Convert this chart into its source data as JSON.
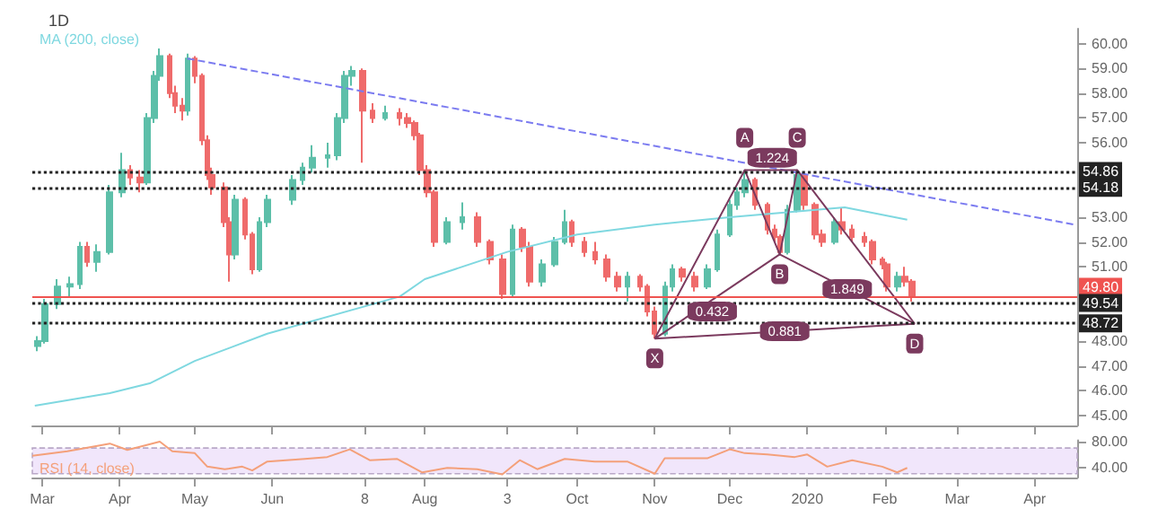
{
  "chart_data": [
    {
      "type": "candlestick",
      "title": "1D",
      "legend": "top left",
      "grid": false,
      "marker": "none",
      "tick_labels": "y",
      "colors": [
        "#5dbfa9",
        "#5dbfa9",
        "#5dbfa9",
        "#5dbfa9",
        "#5dbfa9",
        "#ef6b6b",
        "#5dbfa9",
        "#5dbfa9",
        "#5dbfa9",
        "#ef6b6b",
        "#ef6b6b",
        "#5dbfa9",
        "#5dbfa9",
        "#5dbfa9",
        "#ef6b6b",
        "#ef6b6b",
        "#ef6b6b",
        "#5dbfa9",
        "#ef6b6b",
        "#ef6b6b",
        "#ef6b6b",
        "#ef6b6b",
        "#ef6b6b",
        "#ef6b6b",
        "#5dbfa9",
        "#ef6b6b",
        "#ef6b6b",
        "#5dbfa9",
        "#5dbfa9",
        "#5dbfa9",
        "#5dbfa9",
        "#5dbfa9",
        "#5dbfa9",
        "#5dbfa9",
        "#5dbfa9",
        "#5dbfa9",
        "#ef6b6b",
        "#ef6b6b",
        "#5dbfa9",
        "#ef6b6b",
        "#ef6b6b",
        "#ef6b6b",
        "#ef6b6b",
        "#ef6b6b",
        "#ef6b6b",
        "#5dbfa9",
        "#5dbfa9",
        "#ef6b6b",
        "#ef6b6b",
        "#ef6b6b",
        "#5dbfa9",
        "#ef6b6b",
        "#ef6b6b",
        "#5dbfa9",
        "#5dbfa9",
        "#5dbfa9",
        "#ef6b6b",
        "#ef6b6b",
        "#ef6b6b",
        "#ef6b6b",
        "#ef6b6b",
        "#5dbfa9",
        "#ef6b6b",
        "#ef6b6b",
        "#ef6b6b",
        "#5dbfa9",
        "#5dbfa9",
        "#ef6b6b",
        "#ef6b6b",
        "#5dbfa9",
        "#5dbfa9",
        "#5dbfa9",
        "#5dbfa9",
        "#5dbfa9",
        "#ef6b6b",
        "#ef6b6b",
        "#ef6b6b",
        "#ef6b6b",
        "#5dbfa9",
        "#5dbfa9",
        "#ef6b6b",
        "#ef6b6b",
        "#ef6b6b",
        "#5dbfa9",
        "#ef6b6b",
        "#ef6b6b",
        "#ef6b6b",
        "#ef6b6b",
        "#ef6b6b",
        "#ef6b6b",
        "#5dbfa9",
        "#ef6b6b",
        "#ef6b6b"
      ],
      "x": [
        "2019-02-27",
        "2019-03-02",
        "2019-03-07",
        "2019-03-12",
        "2019-03-16",
        "2019-03-19",
        "2019-03-23",
        "2019-03-28",
        "2019-04-02",
        "2019-04-05",
        "2019-04-09",
        "2019-04-12",
        "2019-04-15",
        "2019-04-17",
        "2019-04-21",
        "2019-04-23",
        "2019-04-26",
        "2019-04-28",
        "2019-05-01",
        "2019-05-04",
        "2019-05-06",
        "2019-05-08",
        "2019-05-13",
        "2019-05-15",
        "2019-05-17",
        "2019-05-21",
        "2019-05-24",
        "2019-05-27",
        "2019-05-30",
        "2019-06-09",
        "2019-06-13",
        "2019-06-17",
        "2019-06-23",
        "2019-06-27",
        "2019-06-30",
        "2019-07-03",
        "2019-07-07",
        "2019-07-11",
        "2019-07-16",
        "2019-07-22",
        "2019-07-25",
        "2019-07-28",
        "2019-07-30",
        "2019-08-02",
        "2019-08-05",
        "2019-08-10",
        "2019-08-16",
        "2019-08-22",
        "2019-08-27",
        "2019-09-01",
        "2019-09-05",
        "2019-09-09",
        "2019-09-12",
        "2019-09-17",
        "2019-09-22",
        "2019-09-26",
        "2019-09-29",
        "2019-10-04",
        "2019-10-08",
        "2019-10-13",
        "2019-10-17",
        "2019-10-21",
        "2019-10-26",
        "2019-10-29",
        "2019-11-01",
        "2019-11-05",
        "2019-11-08",
        "2019-11-12",
        "2019-11-17",
        "2019-11-22",
        "2019-11-26",
        "2019-12-01",
        "2019-12-04",
        "2019-12-07",
        "2019-12-11",
        "2019-12-16",
        "2019-12-19",
        "2019-12-21",
        "2019-12-24",
        "2019-12-28",
        "2019-12-31",
        "2020-01-04",
        "2020-01-07",
        "2020-01-12",
        "2020-01-15",
        "2020-01-19",
        "2020-01-24",
        "2020-01-27",
        "2020-01-31",
        "2020-02-02",
        "2020-02-06",
        "2020-02-09",
        "2020-02-12"
      ],
      "ohlc": [
        [
          47.8,
          48.2,
          47.6,
          48.0
        ],
        [
          48.0,
          49.7,
          47.9,
          49.5
        ],
        [
          49.5,
          50.5,
          49.3,
          50.2
        ],
        [
          50.2,
          50.6,
          49.8,
          50.3
        ],
        [
          50.3,
          52.0,
          50.1,
          51.8
        ],
        [
          51.8,
          52.0,
          51.0,
          51.2
        ],
        [
          51.2,
          51.9,
          50.8,
          51.6
        ],
        [
          51.6,
          54.3,
          51.5,
          54.0
        ],
        [
          54.0,
          55.6,
          53.8,
          54.9
        ],
        [
          54.9,
          55.1,
          54.3,
          54.6
        ],
        [
          54.6,
          54.9,
          54.0,
          54.4
        ],
        [
          54.4,
          57.2,
          54.3,
          57.0
        ],
        [
          57.0,
          58.9,
          56.8,
          58.7
        ],
        [
          58.7,
          59.8,
          58.5,
          59.5
        ],
        [
          59.5,
          59.6,
          57.8,
          58.0
        ],
        [
          58.0,
          58.3,
          57.2,
          57.5
        ],
        [
          57.5,
          57.8,
          56.9,
          57.3
        ],
        [
          57.3,
          59.6,
          57.1,
          59.4
        ],
        [
          59.4,
          59.5,
          58.4,
          58.7
        ],
        [
          58.7,
          58.8,
          55.9,
          56.1
        ],
        [
          56.1,
          56.3,
          54.5,
          54.7
        ],
        [
          54.7,
          55.0,
          53.9,
          54.2
        ],
        [
          54.2,
          54.4,
          52.6,
          52.8
        ],
        [
          52.8,
          53.0,
          50.4,
          51.5
        ],
        [
          51.5,
          53.9,
          51.3,
          53.7
        ],
        [
          53.7,
          53.8,
          52.1,
          52.3
        ],
        [
          52.3,
          52.4,
          50.7,
          50.9
        ],
        [
          50.9,
          53.0,
          50.8,
          52.8
        ],
        [
          52.8,
          53.9,
          52.6,
          53.7
        ],
        [
          53.7,
          54.7,
          53.5,
          54.5
        ],
        [
          54.5,
          55.2,
          54.3,
          55.0
        ],
        [
          55.0,
          55.9,
          54.8,
          55.4
        ],
        [
          55.4,
          56.0,
          55.0,
          55.5
        ],
        [
          55.5,
          57.2,
          55.3,
          57.0
        ],
        [
          57.0,
          58.9,
          56.8,
          58.7
        ],
        [
          58.7,
          59.1,
          58.3,
          58.9
        ],
        [
          58.9,
          59.0,
          55.2,
          57.3
        ],
        [
          57.3,
          57.6,
          56.8,
          57.0
        ],
        [
          57.0,
          57.5,
          56.9,
          57.2
        ],
        [
          57.2,
          57.4,
          56.7,
          57.0
        ],
        [
          57.0,
          57.2,
          56.6,
          56.8
        ],
        [
          56.8,
          56.9,
          56.1,
          56.3
        ],
        [
          56.3,
          56.4,
          54.7,
          54.9
        ],
        [
          54.9,
          55.1,
          53.8,
          54.0
        ],
        [
          54.0,
          54.1,
          51.8,
          52.0
        ],
        [
          52.0,
          53.0,
          51.9,
          52.8
        ],
        [
          52.8,
          53.6,
          52.5,
          53.0
        ],
        [
          53.0,
          53.2,
          51.8,
          52.0
        ],
        [
          52.0,
          52.1,
          51.1,
          51.3
        ],
        [
          51.3,
          51.5,
          49.7,
          49.9
        ],
        [
          49.9,
          52.7,
          49.8,
          52.5
        ],
        [
          52.5,
          52.6,
          51.6,
          51.8
        ],
        [
          51.8,
          52.0,
          50.2,
          50.4
        ],
        [
          50.4,
          51.3,
          50.2,
          51.1
        ],
        [
          51.1,
          52.2,
          51.0,
          52.0
        ],
        [
          52.0,
          53.3,
          51.9,
          52.8
        ],
        [
          52.8,
          52.9,
          51.8,
          52.0
        ],
        [
          52.0,
          52.2,
          51.4,
          51.6
        ],
        [
          51.6,
          52.0,
          51.1,
          51.3
        ],
        [
          51.3,
          51.5,
          50.4,
          50.6
        ],
        [
          50.6,
          50.8,
          50.0,
          50.2
        ],
        [
          50.2,
          50.8,
          49.6,
          50.6
        ],
        [
          50.6,
          50.7,
          50.0,
          50.2
        ],
        [
          50.2,
          50.3,
          49.0,
          49.2
        ],
        [
          49.2,
          49.4,
          48.1,
          48.3
        ],
        [
          48.3,
          50.4,
          48.2,
          50.2
        ],
        [
          50.2,
          51.1,
          50.0,
          50.9
        ],
        [
          50.9,
          51.0,
          50.4,
          50.6
        ],
        [
          50.6,
          50.8,
          50.0,
          50.2
        ],
        [
          50.2,
          51.1,
          50.1,
          50.9
        ],
        [
          50.9,
          52.5,
          50.8,
          52.3
        ],
        [
          52.3,
          53.7,
          52.2,
          53.5
        ],
        [
          53.5,
          54.2,
          53.3,
          54.0
        ],
        [
          54.0,
          54.9,
          53.8,
          54.5
        ],
        [
          54.5,
          54.6,
          53.3,
          53.5
        ],
        [
          53.5,
          53.6,
          52.3,
          52.5
        ],
        [
          52.5,
          52.7,
          52.0,
          52.2
        ],
        [
          52.2,
          52.3,
          51.5,
          51.6
        ],
        [
          51.6,
          53.5,
          51.5,
          53.3
        ],
        [
          53.3,
          54.9,
          53.2,
          54.7
        ],
        [
          54.7,
          54.8,
          53.3,
          53.5
        ],
        [
          53.5,
          53.6,
          52.1,
          52.3
        ],
        [
          52.3,
          52.5,
          51.8,
          52.0
        ],
        [
          52.0,
          53.0,
          51.9,
          52.8
        ],
        [
          52.8,
          53.4,
          52.3,
          52.5
        ],
        [
          52.5,
          52.7,
          52.0,
          52.2
        ],
        [
          52.2,
          52.4,
          51.8,
          52.0
        ],
        [
          52.0,
          52.1,
          51.1,
          51.3
        ],
        [
          51.3,
          51.4,
          50.9,
          51.1
        ],
        [
          51.1,
          51.2,
          50.0,
          50.2
        ],
        [
          50.2,
          50.8,
          50.0,
          50.6
        ],
        [
          50.6,
          51.0,
          50.2,
          50.4
        ],
        [
          50.4,
          50.5,
          49.6,
          49.8
        ]
      ],
      "series": [
        {
          "name": "MA (200, close)",
          "type": "line",
          "color": "#7fd8e0",
          "x": [
            "2019-02-26",
            "2019-03-28",
            "2019-04-13",
            "2019-05-01",
            "2019-05-30",
            "2019-07-22",
            "2019-08-01",
            "2019-09-03",
            "2019-10-01",
            "2019-11-01",
            "2019-12-01",
            "2020-01-16",
            "2020-02-10"
          ],
          "values": [
            45.4,
            45.9,
            46.3,
            47.2,
            48.3,
            49.8,
            50.5,
            51.6,
            52.3,
            52.7,
            53.0,
            53.4,
            52.9
          ]
        },
        {
          "type": "line",
          "color": "#7b7bf0",
          "line_style": "dashed",
          "x": [
            "2019-04-28",
            "2020-04-17"
          ],
          "values": [
            59.4,
            52.7
          ]
        },
        {
          "type": "line",
          "color": "#7b3a5e",
          "x": [
            "2019-11-01",
            "2019-12-07",
            "2019-12-21",
            "2019-12-28",
            "2020-02-13"
          ],
          "values": [
            48.1,
            54.9,
            51.5,
            54.9,
            48.7
          ]
        },
        {
          "type": "line",
          "color": "#7b3a5e",
          "x": [
            "2019-11-01",
            "2019-12-21"
          ],
          "values": [
            48.1,
            51.5
          ]
        },
        {
          "type": "line",
          "color": "#7b3a5e",
          "x": [
            "2019-12-21",
            "2020-02-13"
          ],
          "values": [
            51.5,
            48.7
          ]
        },
        {
          "type": "line",
          "color": "#7b3a5e",
          "x": [
            "2019-11-01",
            "2020-02-13"
          ],
          "values": [
            48.1,
            48.7
          ]
        },
        {
          "type": "line",
          "color": "#7b3a5e",
          "x": [
            "2019-12-07",
            "2019-12-28"
          ],
          "values": [
            54.9,
            54.9
          ]
        }
      ],
      "ref_lines": [
        {
          "axis": "y",
          "value": 54.86,
          "label": "54.86",
          "color": "#222222",
          "line_style": "dotted"
        },
        {
          "axis": "y",
          "value": 54.18,
          "label": "54.18",
          "color": "#222222",
          "line_style": "dotted"
        },
        {
          "axis": "y",
          "value": 49.8,
          "label": "49.80",
          "color": "#ef5350",
          "line_style": "solid"
        },
        {
          "axis": "y",
          "value": 49.54,
          "label": "49.54",
          "color": "#222222",
          "line_style": "dotted"
        },
        {
          "axis": "y",
          "value": 48.72,
          "label": "48.72",
          "color": "#222222",
          "line_style": "dotted"
        }
      ],
      "annotations": [
        {
          "text": "X",
          "x": "2019-11-01",
          "y": 48.1
        },
        {
          "text": "A",
          "x": "2019-12-07",
          "y": 54.9
        },
        {
          "text": "B",
          "x": "2019-12-21",
          "y": 51.5
        },
        {
          "text": "C",
          "x": "2019-12-28",
          "y": 54.9
        },
        {
          "text": "D",
          "x": "2020-02-13",
          "y": 48.7
        },
        {
          "text": "1.224",
          "x": "2019-12-18",
          "y": 55.4
        },
        {
          "text": "0.432",
          "x": "2019-11-24",
          "y": 49.2
        },
        {
          "text": "1.849",
          "x": "2020-01-17",
          "y": 50.1
        },
        {
          "text": "0.881",
          "x": "2019-12-23",
          "y": 48.4
        }
      ],
      "xlim": [
        "2019-02-25",
        "2020-04-18"
      ],
      "xticks": [
        {
          "value": "2019-03-01",
          "label": null
        },
        {
          "value": "2019-04-01",
          "label": null
        },
        {
          "value": "2019-05-01",
          "label": null
        },
        {
          "value": "2019-06-01",
          "label": null
        },
        {
          "value": "2019-07-08",
          "label": null
        },
        {
          "value": "2019-08-01",
          "label": null
        },
        {
          "value": "2019-09-03",
          "label": null
        },
        {
          "value": "2019-10-01",
          "label": null
        },
        {
          "value": "2019-11-01",
          "label": null
        },
        {
          "value": "2019-12-01",
          "label": null
        },
        {
          "value": "2020-01-01",
          "label": null
        },
        {
          "value": "2020-02-01",
          "label": null
        },
        {
          "value": "2020-03-01",
          "label": null
        },
        {
          "value": "2020-04-01",
          "label": null
        }
      ],
      "ylim": [
        44.6,
        60.6
      ],
      "yticks": [
        {
          "value": 45,
          "label": "45.00"
        },
        {
          "value": 46,
          "label": "46.00"
        },
        {
          "value": 47,
          "label": "47.00"
        },
        {
          "value": 48,
          "label": "48.00"
        },
        {
          "value": 51,
          "label": "51.00"
        },
        {
          "value": 52,
          "label": "52.00"
        },
        {
          "value": 53,
          "label": "53.00"
        },
        {
          "value": 56,
          "label": "56.00"
        },
        {
          "value": 57,
          "label": "57.00"
        },
        {
          "value": 58,
          "label": "58.00"
        },
        {
          "value": 59,
          "label": "59.00"
        },
        {
          "value": 60,
          "label": "60.00"
        }
      ]
    },
    {
      "type": "line",
      "legend": "bottom left",
      "grid": false,
      "marker": "none",
      "series": [
        {
          "name": "RSI (14, close)",
          "color": "#f4a07a",
          "x": [
            "2019-02-25",
            "2019-03-11",
            "2019-03-28",
            "2019-04-04",
            "2019-04-09",
            "2019-04-17",
            "2019-04-22",
            "2019-05-01",
            "2019-05-06",
            "2019-05-13",
            "2019-05-20",
            "2019-05-24",
            "2019-05-30",
            "2019-06-14",
            "2019-06-23",
            "2019-07-02",
            "2019-07-10",
            "2019-07-21",
            "2019-07-31",
            "2019-08-10",
            "2019-08-22",
            "2019-09-01",
            "2019-09-08",
            "2019-09-15",
            "2019-09-26",
            "2019-10-08",
            "2019-10-21",
            "2019-11-01",
            "2019-11-05",
            "2019-11-22",
            "2019-12-01",
            "2019-12-07",
            "2019-12-16",
            "2019-12-27",
            "2020-01-01",
            "2020-01-09",
            "2020-01-19",
            "2020-01-31",
            "2020-02-06",
            "2020-02-10"
          ],
          "values": [
            58,
            65,
            77,
            67,
            72,
            80,
            65,
            62,
            41,
            37,
            41,
            35,
            49,
            53,
            56,
            68,
            51,
            53,
            32,
            39,
            37,
            29,
            51,
            37,
            53,
            49,
            49,
            30,
            54,
            54,
            68,
            62,
            60,
            56,
            60,
            41,
            51,
            41,
            32,
            39
          ]
        }
      ],
      "bands": [
        {
          "axis": "y",
          "from": 30,
          "to": 70,
          "color": "#f1e6fb"
        }
      ],
      "xlim": [
        "2019-02-25",
        "2020-04-18"
      ],
      "xticks": [
        {
          "value": "2019-03-01",
          "label": "Mar"
        },
        {
          "value": "2019-04-01",
          "label": "Apr"
        },
        {
          "value": "2019-05-01",
          "label": "May"
        },
        {
          "value": "2019-06-01",
          "label": "Jun"
        },
        {
          "value": "2019-07-08",
          "label": "8"
        },
        {
          "value": "2019-08-01",
          "label": "Aug"
        },
        {
          "value": "2019-09-03",
          "label": "3"
        },
        {
          "value": "2019-10-01",
          "label": "Oct"
        },
        {
          "value": "2019-11-01",
          "label": "Nov"
        },
        {
          "value": "2019-12-01",
          "label": "Dec"
        },
        {
          "value": "2020-01-01",
          "label": "2020"
        },
        {
          "value": "2020-02-01",
          "label": "Feb"
        },
        {
          "value": "2020-03-01",
          "label": "Mar"
        },
        {
          "value": "2020-04-01",
          "label": "Apr"
        }
      ],
      "ylim": [
        24,
        82
      ],
      "yticks": [
        {
          "value": 40,
          "label": "40.00"
        },
        {
          "value": 80,
          "label": "80.00"
        }
      ]
    }
  ]
}
